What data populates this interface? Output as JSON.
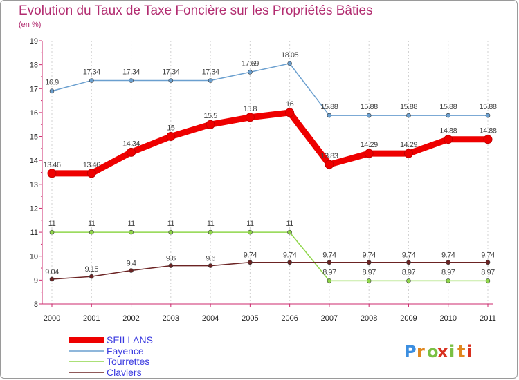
{
  "chart_data": {
    "type": "line",
    "title": "Evolution du Taux de Taxe Foncière sur les Propriétés Bâties",
    "unit": "(en %)",
    "x": [
      "2000",
      "2001",
      "2002",
      "2003",
      "2004",
      "2005",
      "2006",
      "2007",
      "2008",
      "2009",
      "2010",
      "2011"
    ],
    "ylim": [
      8,
      19
    ],
    "yticks": [
      "8",
      "9",
      "10",
      "11",
      "12",
      "13",
      "14",
      "15",
      "16",
      "17",
      "18",
      "19"
    ],
    "series": [
      {
        "name": "SEILLANS",
        "color": "#ee0000",
        "values": [
          13.46,
          13.46,
          14.34,
          15,
          15.5,
          15.8,
          16,
          13.83,
          14.29,
          14.29,
          14.88,
          14.88
        ],
        "labels": [
          "13.46",
          "13.46",
          "14.34",
          "15",
          "15.5",
          "15.8",
          "16",
          "13.83",
          "14.29",
          "14.29",
          "14.88",
          "14.88"
        ]
      },
      {
        "name": "Fayence",
        "color": "#6a9fcf",
        "values": [
          16.9,
          17.34,
          17.34,
          17.34,
          17.34,
          17.69,
          18.05,
          15.88,
          15.88,
          15.88,
          15.88,
          15.88
        ],
        "labels": [
          "16.9",
          "17.34",
          "17.34",
          "17.34",
          "17.34",
          "17.69",
          "18.05",
          "15.88",
          "15.88",
          "15.88",
          "15.88",
          "15.88"
        ]
      },
      {
        "name": "Tourrettes",
        "color": "#8fd64a",
        "values": [
          11,
          11,
          11,
          11,
          11,
          11,
          11,
          8.97,
          8.97,
          8.97,
          8.97,
          8.97
        ],
        "labels": [
          "11",
          "11",
          "11",
          "11",
          "11",
          "11",
          "11",
          "8.97",
          "8.97",
          "8.97",
          "8.97",
          "8.97"
        ]
      },
      {
        "name": "Claviers",
        "color": "#6b2323",
        "values": [
          9.04,
          9.15,
          9.4,
          9.6,
          9.6,
          9.74,
          9.74,
          9.74,
          9.74,
          9.74,
          9.74,
          9.74
        ],
        "labels": [
          "9.04",
          "9.15",
          "9.4",
          "9.6",
          "9.6",
          "9.74",
          "9.74",
          "9.74",
          "9.74",
          "9.74",
          "9.74",
          "9.74"
        ]
      }
    ],
    "legend": [
      "SEILLANS",
      "Fayence",
      "Tourrettes",
      "Claviers"
    ],
    "legend_position": "bottom-left"
  },
  "brand": {
    "text": "Proxiti",
    "letters": [
      "P",
      "r",
      "o",
      "x",
      "i",
      "t",
      "i"
    ],
    "colors": [
      "#3b8ee0",
      "#e0871f",
      "#7ac043",
      "#d8301f",
      "#7ac043",
      "#e0871f",
      "#d8301f"
    ]
  }
}
